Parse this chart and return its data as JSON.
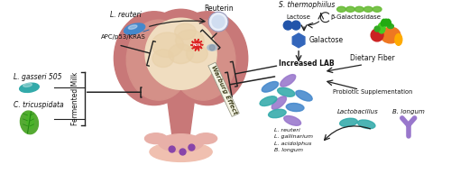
{
  "fig_width": 5.0,
  "fig_height": 2.13,
  "dpi": 100,
  "bg_color": "#ffffff",
  "labels": {
    "l_reuteri": "L. reuteri",
    "reuterin": "Reuterin",
    "s_thermophilus": "S. thermophiilus",
    "lactose": "Lactose",
    "beta_gal": "β-Galactosidase",
    "galactose": "Galactose",
    "apc": "APC/p53/KRAS",
    "warburg": "Warburg Effect",
    "increased_lab": "Increased LAB",
    "dietary_fiber": "Dietary Fiber",
    "probiotic": "Probiotic Supplementation",
    "lactobacillus": "Lactobacillus",
    "b_longum": "B. longum",
    "l_gasseri": "L. gasseri 505",
    "c_tricuspidata": "C. tricuspidata",
    "fermented_milk": "Fermented Milk",
    "species_list": "L. reuteri\nL. gallinarium\nL. acidolphus\nB. longum"
  },
  "colors": {
    "colon_outer": "#c87878",
    "colon_mid": "#d49088",
    "colon_inner": "#dba898",
    "colon_cream": "#f0ddc0",
    "colon_stalk": "#c87878",
    "colon_base": "#e8b0a8",
    "bacteria_blue": "#4488cc",
    "bacteria_teal": "#33aaaa",
    "bacteria_purple": "#9977cc",
    "bacteria_green": "#55aa33",
    "reuterin_circle": "#e8eef8",
    "galactose_hex": "#3366bb",
    "ros_red": "#dd2222",
    "arrow_color": "#222222",
    "text_color": "#111111",
    "s_thermo_green": "#66bb33",
    "lactose_blue": "#2255aa",
    "tumor_purple": "#8844aa"
  }
}
